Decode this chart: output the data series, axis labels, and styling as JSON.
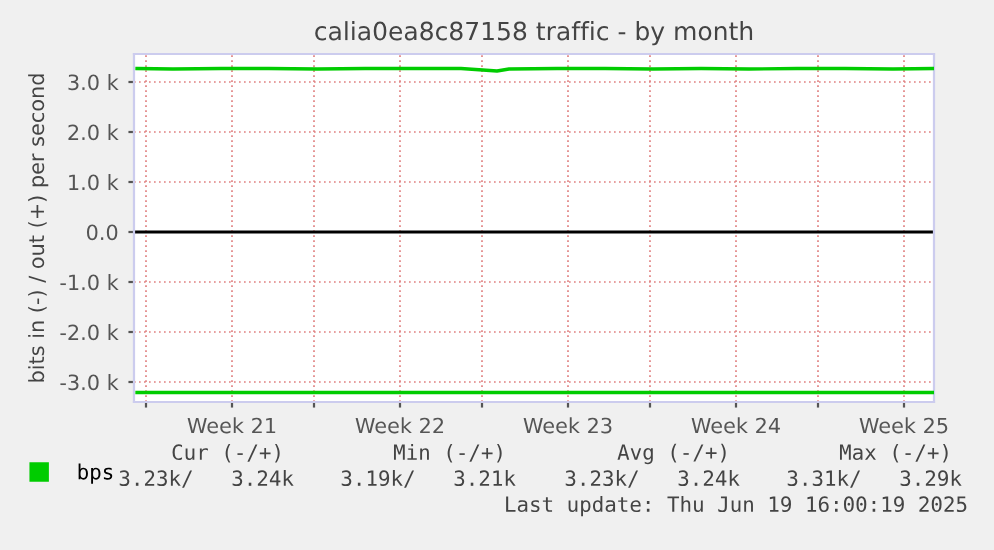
{
  "chart_data": {
    "type": "line",
    "title": "calia0ea8c87158 traffic - by month",
    "ylabel": "bits in (-) / out (+) per second",
    "xlim": [
      "2025-05-17T09:00",
      "2025-06-19T17:00"
    ],
    "xticks": [
      {
        "value": "2025-05-17T21:00",
        "label": null
      },
      {
        "value": "2025-05-21T11:00",
        "label": "Week 21"
      },
      {
        "value": "2025-05-24T21:00",
        "label": null
      },
      {
        "value": "2025-05-28T11:00",
        "label": "Week 22"
      },
      {
        "value": "2025-05-31T21:00",
        "label": null
      },
      {
        "value": "2025-06-04T11:00",
        "label": "Week 23"
      },
      {
        "value": "2025-06-07T21:00",
        "label": null
      },
      {
        "value": "2025-06-11T11:00",
        "label": "Week 24"
      },
      {
        "value": "2025-06-14T21:00",
        "label": null
      },
      {
        "value": "2025-06-18T11:00",
        "label": "Week 25"
      }
    ],
    "ylim": [
      -3400,
      3560
    ],
    "yticks": [
      {
        "value": -3000,
        "label": "-3.0 k"
      },
      {
        "value": -2000,
        "label": "-2.0 k"
      },
      {
        "value": -1000,
        "label": "-1.0 k"
      },
      {
        "value": 0,
        "label": "0.0"
      },
      {
        "value": 1000,
        "label": "1.0 k"
      },
      {
        "value": 2000,
        "label": "2.0 k"
      },
      {
        "value": 3000,
        "label": "3.0 k"
      }
    ],
    "grid": true,
    "legend": "bottom left",
    "line_style": "solid",
    "marker": "none",
    "series": [
      {
        "name": "bps",
        "color": "#00cc00",
        "x": [
          "2025-05-17T12:00",
          "2025-05-19",
          "2025-05-21",
          "2025-05-23",
          "2025-05-25",
          "2025-05-27",
          "2025-05-29",
          "2025-05-31",
          "2025-06-01T12:00",
          "2025-06-02",
          "2025-06-04",
          "2025-06-06",
          "2025-06-08",
          "2025-06-10",
          "2025-06-12",
          "2025-06-14",
          "2025-06-16",
          "2025-06-18",
          "2025-06-19T16:00"
        ],
        "values": [
          3270,
          3260,
          3270,
          3270,
          3260,
          3270,
          3270,
          3270,
          3220,
          3260,
          3270,
          3270,
          3260,
          3270,
          3260,
          3270,
          3270,
          3260,
          3270
        ]
      },
      {
        "color": "#00cc00",
        "x": [
          "2025-05-17T12:00",
          "2025-06-01",
          "2025-06-19T16:00"
        ],
        "values": [
          -3210,
          -3210,
          -3210
        ]
      }
    ],
    "annotations": [
      "Cur (-/+)",
      "Min (-/+)",
      "Avg (-/+)",
      "Max (-/+)",
      "3.23k/   3.24k",
      "3.19k/   3.21k",
      "3.23k/   3.24k",
      "3.31k/   3.29k",
      "Last update: Thu Jun 19 16:00:19 2025"
    ]
  }
}
